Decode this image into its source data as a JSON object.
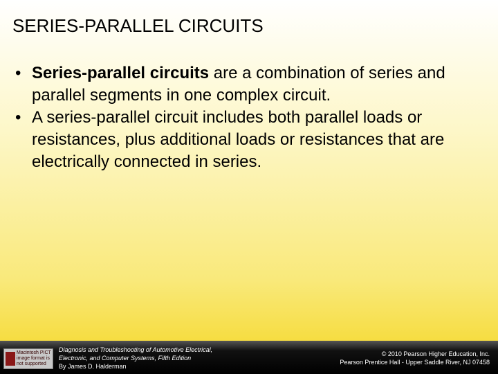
{
  "slide": {
    "title": "SERIES-PARALLEL CIRCUITS",
    "bullets": [
      {
        "bold": "Series-parallel circuits",
        "text": " are a combination of series and parallel segments in one complex circuit."
      },
      {
        "text": "A series-parallel circuit includes both parallel loads or resistances, plus additional loads or resistances that are electrically connected in series."
      }
    ],
    "footer": {
      "image_text": "Macintosh PICT image format is not supported",
      "book_lines": [
        "Diagnosis and Troubleshooting of Automotive Electrical,",
        "Electronic, and Computer Systems, Fifth Edition",
        "By James D. Halderman"
      ],
      "copyright_lines": [
        "© 2010 Pearson Higher Education, Inc.",
        "Pearson Prentice Hall - Upper Saddle River, NJ 07458"
      ]
    }
  }
}
